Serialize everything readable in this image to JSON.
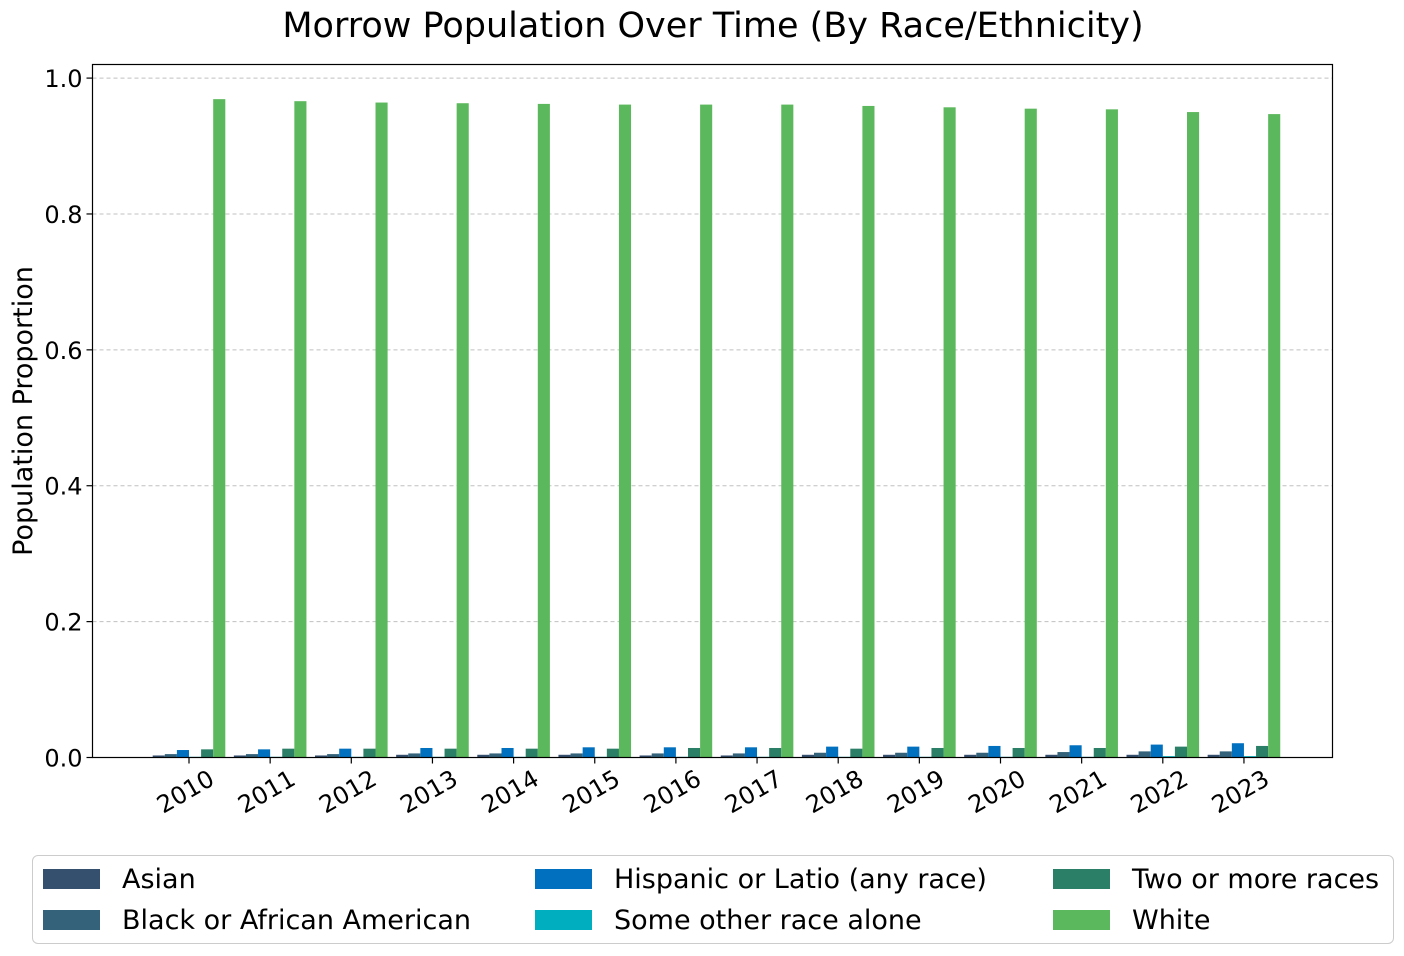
{
  "chart_data": {
    "type": "bar",
    "title": "Morrow Population Over Time (By Race/Ethnicity)",
    "xlabel": "",
    "ylabel": "Population Proportion",
    "ylim": [
      0,
      1.02
    ],
    "yticks": [
      "0.0",
      "0.2",
      "0.4",
      "0.6",
      "0.8",
      "1.0"
    ],
    "ytick_values": [
      0,
      0.2,
      0.4,
      0.6,
      0.8,
      1.0
    ],
    "grid": "y-dashed",
    "legend_position": "bottom",
    "categories": [
      "2010",
      "2011",
      "2012",
      "2013",
      "2014",
      "2015",
      "2016",
      "2017",
      "2018",
      "2019",
      "2020",
      "2021",
      "2022",
      "2023"
    ],
    "series": [
      {
        "name": "Asian",
        "color": "#354f6e",
        "values": [
          0.003,
          0.003,
          0.003,
          0.004,
          0.004,
          0.004,
          0.003,
          0.003,
          0.004,
          0.004,
          0.004,
          0.004,
          0.004,
          0.004
        ]
      },
      {
        "name": "Black or African American",
        "color": "#33627a",
        "values": [
          0.005,
          0.005,
          0.005,
          0.006,
          0.006,
          0.006,
          0.006,
          0.006,
          0.007,
          0.007,
          0.007,
          0.008,
          0.009,
          0.009
        ]
      },
      {
        "name": "Hispanic or Latio (any race)",
        "color": "#0070bf",
        "values": [
          0.011,
          0.012,
          0.013,
          0.014,
          0.014,
          0.015,
          0.015,
          0.015,
          0.016,
          0.016,
          0.017,
          0.018,
          0.019,
          0.021
        ]
      },
      {
        "name": "Some other race alone",
        "color": "#00afbf",
        "values": [
          0.001,
          0.001,
          0.001,
          0.001,
          0.001,
          0.001,
          0.001,
          0.001,
          0.001,
          0.001,
          0.001,
          0.001,
          0.002,
          0.002
        ]
      },
      {
        "name": "Two or more races",
        "color": "#2a7f66",
        "values": [
          0.012,
          0.013,
          0.013,
          0.013,
          0.013,
          0.013,
          0.014,
          0.014,
          0.013,
          0.014,
          0.014,
          0.014,
          0.016,
          0.017
        ]
      },
      {
        "name": "White",
        "color": "#5cb85c",
        "values": [
          0.969,
          0.966,
          0.964,
          0.963,
          0.962,
          0.961,
          0.961,
          0.961,
          0.959,
          0.957,
          0.955,
          0.954,
          0.95,
          0.947
        ]
      }
    ]
  }
}
